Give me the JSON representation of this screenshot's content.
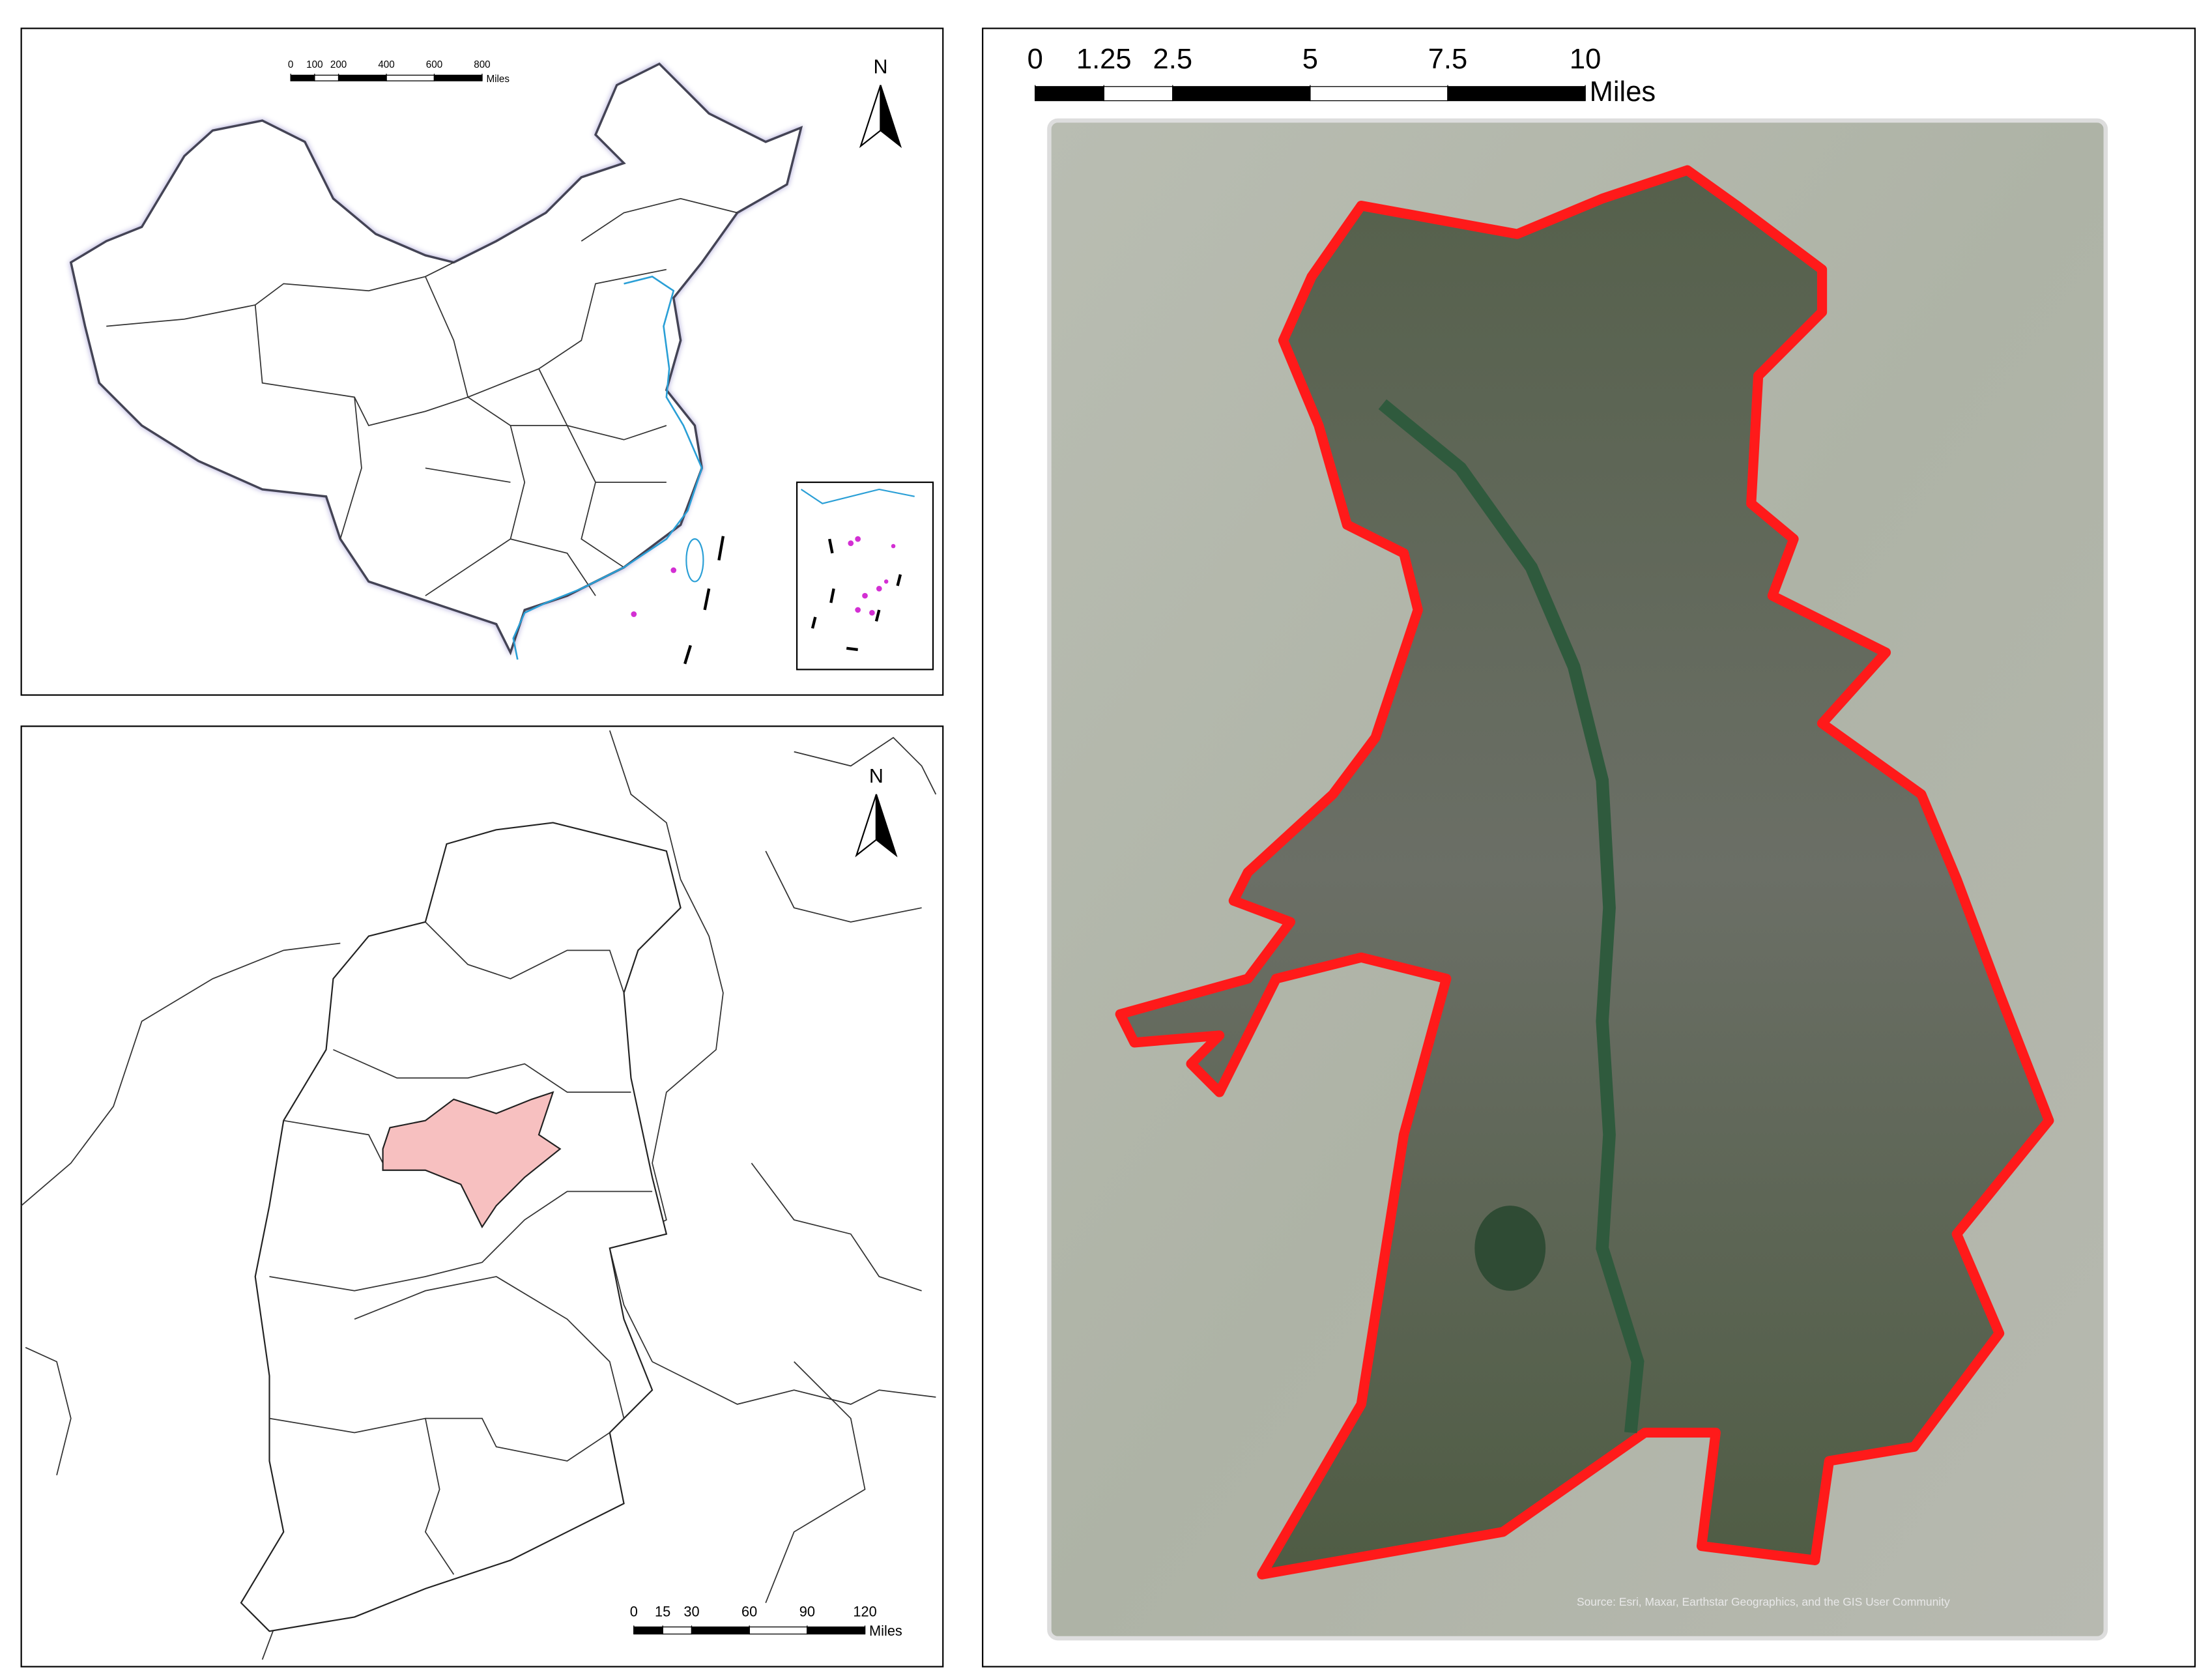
{
  "panels": {
    "china_map": {
      "north": "N",
      "scale": {
        "ticks": [
          0,
          100,
          200,
          400,
          600,
          800
        ],
        "unit": "Miles"
      }
    },
    "province_map": {
      "north": "N",
      "scale": {
        "ticks": [
          0,
          15,
          30,
          60,
          90,
          120
        ],
        "unit": "Miles"
      }
    },
    "city_map": {
      "scale": {
        "ticks": [
          0,
          1.25,
          2.5,
          5,
          7.5,
          10
        ],
        "unit": "Miles"
      },
      "attribution": "Source: Esri, Maxar, Earthstar Geographics, and the GIS User Community"
    }
  }
}
